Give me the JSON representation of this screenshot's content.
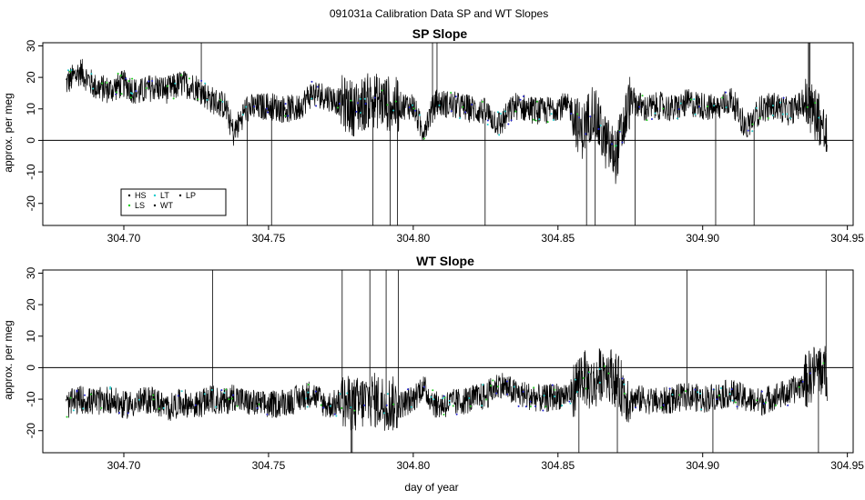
{
  "figure": {
    "title": "091031a   Calibration Data SP and WT Slopes",
    "xlabel": "day of year"
  },
  "legend": {
    "placement": "bottom-left",
    "entries": [
      {
        "label": "HS",
        "color": "#000000"
      },
      {
        "label": "LS",
        "color": "#22cc22"
      },
      {
        "label": "LT",
        "color": "#22cccc"
      },
      {
        "label": "WT",
        "color": "#000000"
      },
      {
        "label": "LP",
        "color": "#000000"
      }
    ]
  },
  "chart_data": [
    {
      "type": "line",
      "title": "SP Slope",
      "xlabel": "",
      "ylabel": "approx. per meg",
      "xlim": [
        304.672,
        304.952
      ],
      "ylim": [
        -27,
        31
      ],
      "xticks": [
        304.7,
        304.75,
        304.8,
        304.85,
        304.9,
        304.95
      ],
      "yticks": [
        -20,
        -10,
        0,
        10,
        20,
        30
      ],
      "hline": 0,
      "grid": false,
      "x_range": [
        304.68,
        304.943
      ],
      "series": [
        {
          "color": "#000000",
          "style": "line",
          "x": [
            304.68,
            304.685,
            304.69,
            304.695,
            304.7,
            304.705,
            304.71,
            304.715,
            304.72,
            304.725,
            304.73,
            304.735,
            304.738,
            304.742,
            304.75,
            304.755,
            304.76,
            304.765,
            304.77,
            304.775,
            304.78,
            304.785,
            304.79,
            304.795,
            304.8,
            304.803,
            304.808,
            304.815,
            304.82,
            304.825,
            304.83,
            304.835,
            304.84,
            304.845,
            304.85,
            304.855,
            304.858,
            304.862,
            304.866,
            304.87,
            304.875,
            304.88,
            304.885,
            304.89,
            304.895,
            304.9,
            304.905,
            304.91,
            304.915,
            304.92,
            304.925,
            304.93,
            304.935,
            304.94,
            304.943
          ],
          "y": [
            18,
            22,
            17,
            16,
            18,
            15,
            17,
            16,
            18,
            17,
            13,
            11,
            2,
            10,
            11,
            10,
            10,
            15,
            14,
            12,
            10,
            13,
            12,
            11,
            11,
            3,
            12,
            11,
            10,
            9,
            5,
            11,
            10,
            9,
            11,
            10,
            2,
            10,
            0,
            -5,
            13,
            10,
            11,
            10,
            12,
            11,
            10,
            13,
            4,
            10,
            11,
            9,
            12,
            8,
            0
          ]
        }
      ]
    },
    {
      "type": "line",
      "title": "WT Slope",
      "xlabel": "day of year",
      "ylabel": "approx. per meg",
      "xlim": [
        304.672,
        304.952
      ],
      "ylim": [
        -27,
        31
      ],
      "xticks": [
        304.7,
        304.75,
        304.8,
        304.85,
        304.9,
        304.95
      ],
      "yticks": [
        -20,
        -10,
        0,
        10,
        20,
        30
      ],
      "hline": 0,
      "grid": false,
      "x_range": [
        304.68,
        304.943
      ],
      "series": [
        {
          "color": "#000000",
          "style": "line",
          "x": [
            304.68,
            304.685,
            304.69,
            304.695,
            304.7,
            304.705,
            304.71,
            304.715,
            304.72,
            304.725,
            304.73,
            304.735,
            304.738,
            304.742,
            304.75,
            304.755,
            304.76,
            304.765,
            304.77,
            304.775,
            304.78,
            304.785,
            304.79,
            304.795,
            304.8,
            304.803,
            304.808,
            304.815,
            304.82,
            304.825,
            304.83,
            304.835,
            304.84,
            304.845,
            304.85,
            304.855,
            304.858,
            304.862,
            304.866,
            304.87,
            304.875,
            304.88,
            304.885,
            304.89,
            304.895,
            304.9,
            304.905,
            304.91,
            304.915,
            304.92,
            304.925,
            304.93,
            304.935,
            304.94,
            304.943
          ],
          "y": [
            -12,
            -10,
            -11,
            -10,
            -12,
            -11,
            -10,
            -13,
            -11,
            -12,
            -10,
            -11,
            -9,
            -11,
            -12,
            -11,
            -10,
            -8,
            -12,
            -11,
            -12,
            -10,
            -11,
            -12,
            -10,
            -6,
            -12,
            -11,
            -10,
            -9,
            -5,
            -8,
            -9,
            -10,
            -9,
            -8,
            -2,
            -6,
            0,
            -4,
            -10,
            -10,
            -11,
            -10,
            -9,
            -10,
            -9,
            -8,
            -10,
            -11,
            -9,
            -8,
            -5,
            0,
            -2
          ]
        }
      ]
    }
  ]
}
